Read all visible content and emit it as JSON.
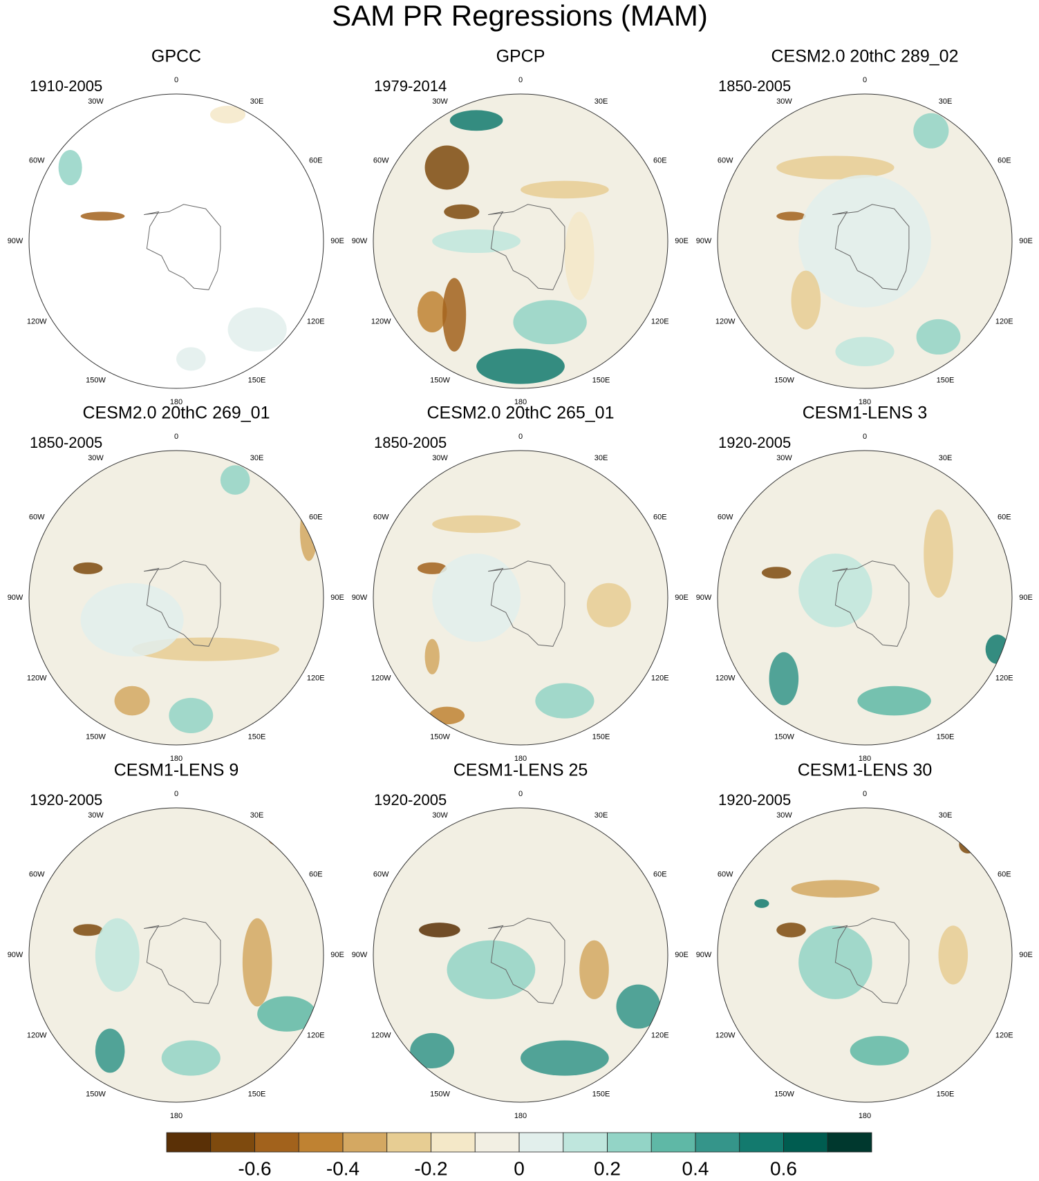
{
  "title": "SAM PR Regressions (MAM)",
  "longitude_labels": [
    "0",
    "30E",
    "60E",
    "90E",
    "120E",
    "150E",
    "180",
    "150W",
    "120W",
    "90W",
    "60W",
    "30W"
  ],
  "panels": [
    {
      "title": "GPCC",
      "period": "1910-2005"
    },
    {
      "title": "GPCP",
      "period": "1979-2014"
    },
    {
      "title": "CESM2.0 20thC 289_02",
      "period": "1850-2005"
    },
    {
      "title": "CESM2.0 20thC 269_01",
      "period": "1850-2005"
    },
    {
      "title": "CESM2.0 20thC 265_01",
      "period": "1850-2005"
    },
    {
      "title": "CESM1-LENS 3",
      "period": "1920-2005"
    },
    {
      "title": "CESM1-LENS 9",
      "period": "1920-2005"
    },
    {
      "title": "CESM1-LENS 25",
      "period": "1920-2005"
    },
    {
      "title": "CESM1-LENS 30",
      "period": "1920-2005"
    }
  ],
  "colorbar": {
    "colors": [
      "#5a3006",
      "#7e4a0e",
      "#a2621c",
      "#bf8232",
      "#d4a862",
      "#e7cd93",
      "#f4e8c8",
      "#f2efe3",
      "#e2efec",
      "#bfe6dd",
      "#93d4c6",
      "#5fb8a6",
      "#35958a",
      "#137a6e",
      "#005c50",
      "#00382e"
    ],
    "lim": [
      -0.8,
      0.8
    ],
    "ticks": [
      -0.6,
      -0.4,
      -0.2,
      0,
      0.2,
      0.4,
      0.6
    ]
  }
}
